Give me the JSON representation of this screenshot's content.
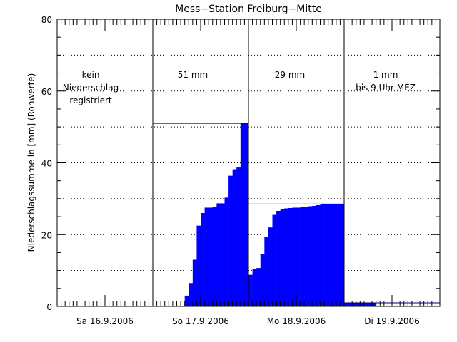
{
  "chart_data": {
    "type": "bar",
    "title": "Mess−Station Freiburg−Mitte",
    "ylabel": "Niederschlagssumme in [mm] (Rohwerte)",
    "xlabel": "",
    "ylim": [
      0,
      80
    ],
    "yticks": [
      0,
      20,
      40,
      60,
      80
    ],
    "grid": "horizontal dotted every 10 mm",
    "colors": {
      "bars": "#0000ff",
      "axes": "#000000",
      "background": "#ffffff"
    },
    "days": [
      {
        "label": "Sa 16.9.2006",
        "annotation": [
          "kein",
          "Niederschlag",
          "registriert"
        ],
        "total": 0
      },
      {
        "label": "So 17.9.2006",
        "annotation": [
          "51 mm"
        ],
        "total": 51
      },
      {
        "label": "Mo 18.9.2006",
        "annotation": [
          "29 mm"
        ],
        "total": 28.5
      },
      {
        "label": "Di 19.9.2006",
        "annotation": [
          "1 mm",
          "bis 9 Uhr MEZ"
        ],
        "total": 1
      }
    ],
    "bars_per_day": 24,
    "series": [
      {
        "values": [
          0,
          0,
          0,
          0,
          0,
          0,
          0,
          0,
          0,
          0,
          0,
          0,
          0,
          0,
          0,
          0,
          0,
          0,
          0,
          0,
          0,
          0,
          0,
          0
        ]
      },
      {
        "values": [
          0,
          0,
          0,
          0,
          0,
          0,
          0,
          0,
          3,
          6.5,
          13,
          22.5,
          26,
          27.5,
          27.5,
          27.7,
          28.7,
          28.7,
          30.3,
          36.4,
          38.2,
          38.7,
          51,
          51
        ]
      },
      {
        "values": [
          8.8,
          10.5,
          10.7,
          14.6,
          19.3,
          22,
          25.5,
          26.6,
          27.2,
          27.3,
          27.4,
          27.5,
          27.5,
          27.6,
          27.7,
          27.9,
          28,
          28.2,
          28.4,
          28.5,
          28.5,
          28.5,
          28.5,
          28.5
        ]
      },
      {
        "values": [
          1,
          1,
          1,
          1,
          1,
          1,
          1,
          1,
          0,
          0,
          0,
          0,
          0,
          0,
          0,
          0,
          0,
          0,
          0,
          0,
          0,
          0,
          0,
          0
        ]
      }
    ]
  }
}
